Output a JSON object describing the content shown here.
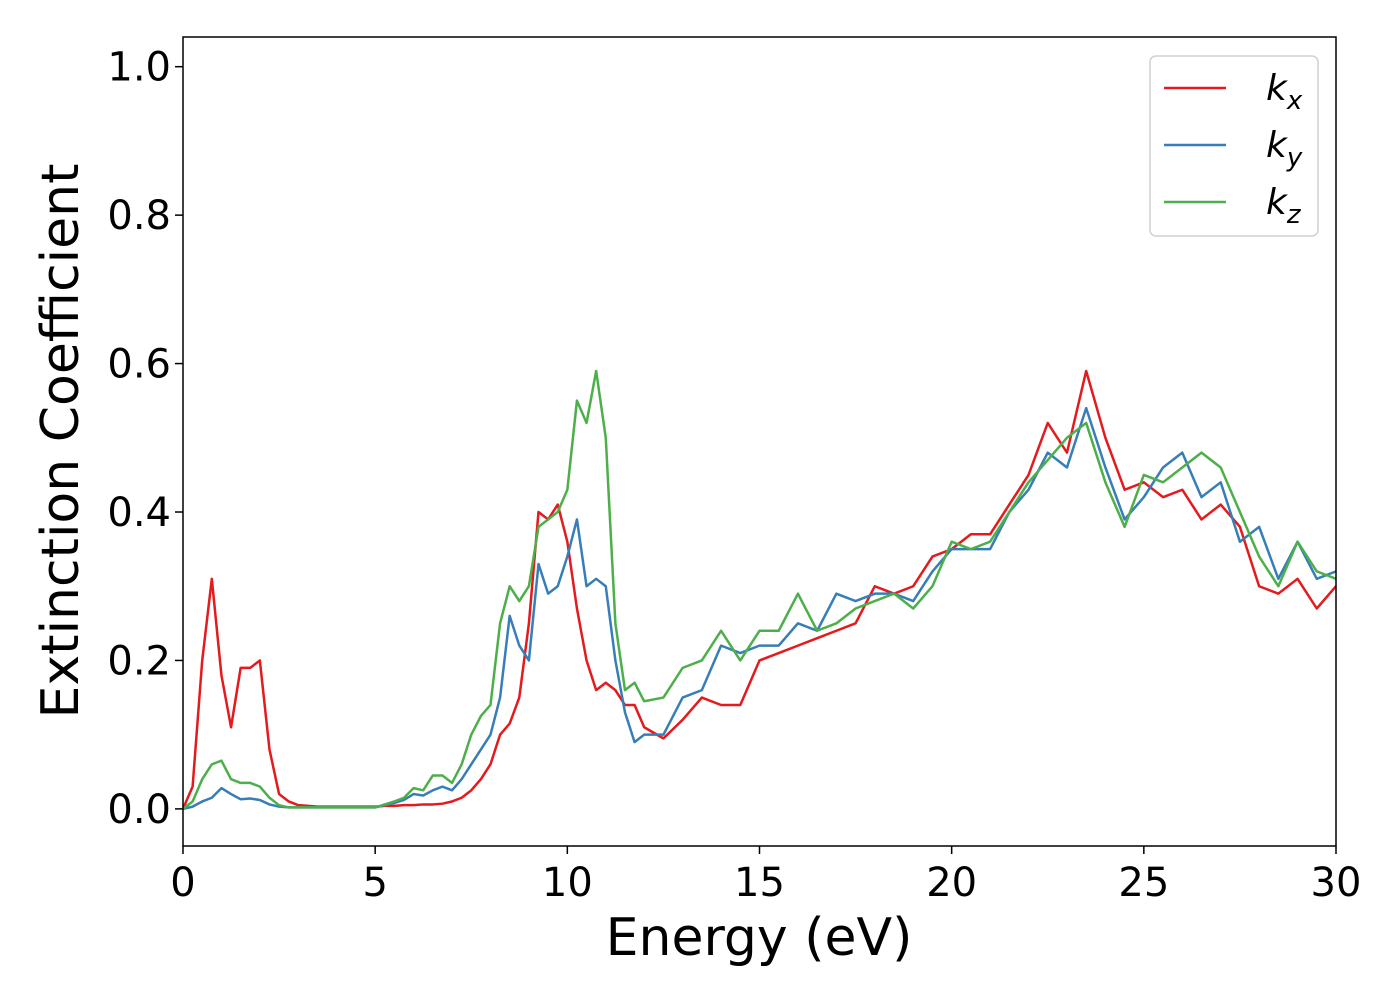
{
  "chart_data": {
    "type": "line",
    "xlabel": "Energy (eV)",
    "ylabel": "Extinction Coefficient",
    "x": [
      0,
      0.25,
      0.5,
      0.75,
      1,
      1.25,
      1.5,
      1.75,
      2,
      2.25,
      2.5,
      2.75,
      3,
      3.25,
      3.5,
      3.75,
      4,
      4.25,
      4.5,
      4.75,
      5,
      5.25,
      5.5,
      5.75,
      6,
      6.25,
      6.5,
      6.75,
      7,
      7.25,
      7.5,
      7.75,
      8,
      8.25,
      8.5,
      8.75,
      9,
      9.25,
      9.5,
      9.75,
      10,
      10.25,
      10.5,
      10.75,
      11,
      11.25,
      11.5,
      11.75,
      12,
      12.5,
      13,
      13.5,
      14,
      14.5,
      15,
      15.5,
      16,
      16.5,
      17,
      17.5,
      18,
      18.5,
      19,
      19.5,
      20,
      20.5,
      21,
      21.5,
      22,
      22.5,
      23,
      23.5,
      24,
      24.5,
      25,
      25.5,
      26,
      26.5,
      27,
      27.5,
      28,
      28.5,
      29,
      29.5,
      30
    ],
    "series": [
      {
        "name": "kx",
        "color": "#e41a1c",
        "values": [
          0,
          0.03,
          0.2,
          0.31,
          0.18,
          0.11,
          0.19,
          0.19,
          0.2,
          0.08,
          0.02,
          0.01,
          0.005,
          0.004,
          0.003,
          0.003,
          0.003,
          0.003,
          0.003,
          0.003,
          0.003,
          0.004,
          0.004,
          0.005,
          0.005,
          0.006,
          0.006,
          0.007,
          0.01,
          0.015,
          0.025,
          0.04,
          0.06,
          0.1,
          0.115,
          0.15,
          0.25,
          0.4,
          0.39,
          0.41,
          0.36,
          0.27,
          0.2,
          0.16,
          0.17,
          0.16,
          0.14,
          0.14,
          0.11,
          0.095,
          0.12,
          0.15,
          0.14,
          0.14,
          0.2,
          0.21,
          0.22,
          0.23,
          0.24,
          0.25,
          0.3,
          0.29,
          0.3,
          0.34,
          0.35,
          0.37,
          0.37,
          0.41,
          0.45,
          0.52,
          0.48,
          0.59,
          0.5,
          0.43,
          0.44,
          0.42,
          0.43,
          0.39,
          0.41,
          0.38,
          0.3,
          0.29,
          0.31,
          0.27,
          0.3
        ]
      },
      {
        "name": "ky",
        "color": "#377eb8",
        "values": [
          0,
          0.003,
          0.01,
          0.015,
          0.028,
          0.02,
          0.013,
          0.014,
          0.012,
          0.006,
          0.003,
          0.002,
          0.002,
          0.002,
          0.002,
          0.002,
          0.002,
          0.002,
          0.002,
          0.002,
          0.002,
          0.005,
          0.008,
          0.012,
          0.02,
          0.018,
          0.025,
          0.03,
          0.025,
          0.04,
          0.06,
          0.08,
          0.1,
          0.15,
          0.26,
          0.22,
          0.2,
          0.33,
          0.29,
          0.3,
          0.34,
          0.39,
          0.3,
          0.31,
          0.3,
          0.2,
          0.13,
          0.09,
          0.1,
          0.1,
          0.15,
          0.16,
          0.22,
          0.21,
          0.22,
          0.22,
          0.25,
          0.24,
          0.29,
          0.28,
          0.29,
          0.29,
          0.28,
          0.32,
          0.35,
          0.35,
          0.35,
          0.4,
          0.43,
          0.48,
          0.46,
          0.54,
          0.46,
          0.39,
          0.42,
          0.46,
          0.48,
          0.42,
          0.44,
          0.36,
          0.38,
          0.31,
          0.36,
          0.31,
          0.32
        ]
      },
      {
        "name": "kz",
        "color": "#4daf4a",
        "values": [
          0,
          0.01,
          0.04,
          0.06,
          0.065,
          0.04,
          0.035,
          0.035,
          0.03,
          0.015,
          0.005,
          0.002,
          0.002,
          0.002,
          0.002,
          0.002,
          0.002,
          0.002,
          0.002,
          0.002,
          0.002,
          0.006,
          0.01,
          0.015,
          0.028,
          0.025,
          0.045,
          0.045,
          0.035,
          0.06,
          0.1,
          0.125,
          0.14,
          0.25,
          0.3,
          0.28,
          0.3,
          0.38,
          0.39,
          0.4,
          0.43,
          0.55,
          0.52,
          0.59,
          0.5,
          0.25,
          0.16,
          0.17,
          0.145,
          0.15,
          0.19,
          0.2,
          0.24,
          0.2,
          0.24,
          0.24,
          0.29,
          0.24,
          0.25,
          0.27,
          0.28,
          0.29,
          0.27,
          0.3,
          0.36,
          0.35,
          0.36,
          0.4,
          0.44,
          0.47,
          0.5,
          0.52,
          0.44,
          0.38,
          0.45,
          0.44,
          0.46,
          0.48,
          0.46,
          0.4,
          0.34,
          0.3,
          0.36,
          0.32,
          0.31
        ]
      }
    ],
    "xlim": [
      0,
      30
    ],
    "xticks": [
      0,
      5,
      10,
      15,
      20,
      25,
      30
    ],
    "ylim": [
      -0.05,
      1.04
    ],
    "yticks": [
      {
        "value": 0,
        "label": "0.0"
      },
      0.2,
      0.4,
      0.6,
      0.8,
      {
        "value": 1,
        "label": "1.0"
      }
    ],
    "legend": "upper right"
  }
}
